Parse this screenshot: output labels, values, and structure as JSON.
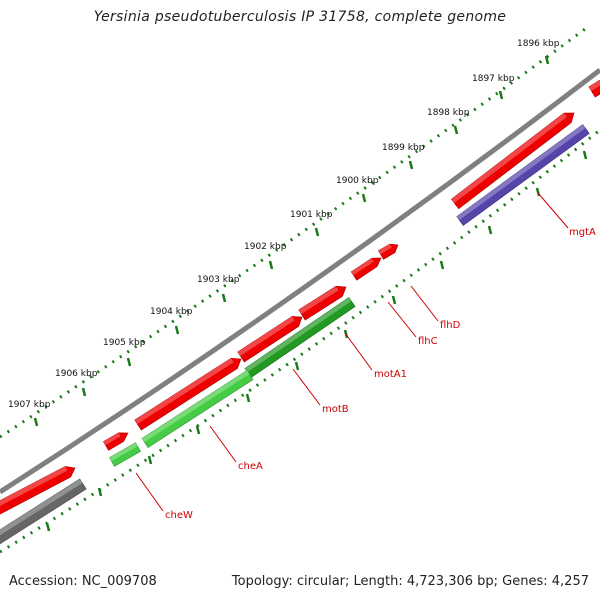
{
  "title": "Yersinia pseudotuberculosis IP 31758, complete genome",
  "footer": {
    "accession": "Accession: NC_009708",
    "meta": "Topology: circular; Length: 4,723,306 bp; Genes: 4,257"
  },
  "colors": {
    "backbone": "#808080",
    "forward_gene": "#ee0000",
    "reverse_gene_purple": "#5544aa",
    "reverse_gene_green_dark": "#229922",
    "reverse_gene_green_light": "#44cc44",
    "reverse_gene_gray": "#666666",
    "tick": "#1a7a1a",
    "gene_label": "#cc0000"
  },
  "kbp_ticks": [
    "1896 kbp",
    "1897 kbp",
    "1898 kbp",
    "1899 kbp",
    "1900 kbp",
    "1901 kbp",
    "1902 kbp",
    "1903 kbp",
    "1904 kbp",
    "1905 kbp",
    "1906 kbp",
    "1907 kbp"
  ],
  "gene_labels": [
    "mgtA",
    "flhD",
    "flhC",
    "motA1",
    "motB",
    "cheA",
    "cheW"
  ]
}
